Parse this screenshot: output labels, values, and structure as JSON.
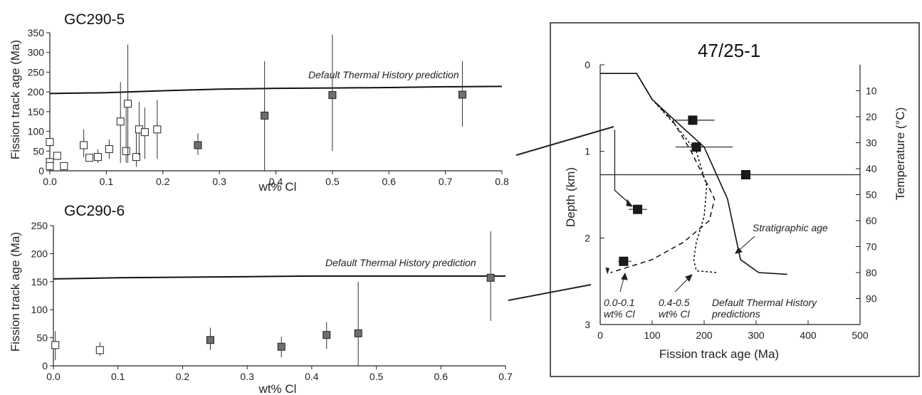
{
  "chart_data": [
    {
      "type": "scatter",
      "title": "GC290-5",
      "xlabel": "wt% Cl",
      "ylabel": "Fission track age (Ma)",
      "xlim": [
        0,
        0.8
      ],
      "ylim": [
        0,
        350
      ],
      "xticks": [
        "0.0",
        "0.1",
        "0.2",
        "0.3",
        "0.4",
        "0.5",
        "0.6",
        "0.7",
        "0.8"
      ],
      "yticks": [
        "0",
        "50",
        "100",
        "150",
        "200",
        "250",
        "300",
        "350"
      ],
      "line_label": "Default Thermal History prediction",
      "line": {
        "x": [
          0,
          0.1,
          0.2,
          0.3,
          0.4,
          0.5,
          0.6,
          0.7,
          0.8
        ],
        "y": [
          196,
          198,
          203,
          207,
          209,
          210,
          211,
          213,
          214
        ]
      },
      "series": [
        {
          "marker": "open",
          "points": [
            {
              "x": 0.0,
              "y": 73
            },
            {
              "x": 0.0,
              "y": 22
            },
            {
              "x": 0.0,
              "y": 12
            },
            {
              "x": 0.013,
              "y": 38
            },
            {
              "x": 0.025,
              "y": 12
            },
            {
              "x": 0.06,
              "y": 65,
              "lo": 35,
              "hi": 105
            },
            {
              "x": 0.07,
              "y": 33
            },
            {
              "x": 0.085,
              "y": 35,
              "lo": 20,
              "hi": 55
            },
            {
              "x": 0.105,
              "y": 55,
              "lo": 30,
              "hi": 80
            },
            {
              "x": 0.125,
              "y": 125,
              "lo": 20,
              "hi": 225
            },
            {
              "x": 0.135,
              "y": 50,
              "lo": 20,
              "hi": 160
            },
            {
              "x": 0.138,
              "y": 170,
              "lo": 20,
              "hi": 320
            },
            {
              "x": 0.153,
              "y": 35,
              "lo": 10,
              "hi": 95
            },
            {
              "x": 0.158,
              "y": 105,
              "lo": 40,
              "hi": 175
            },
            {
              "x": 0.168,
              "y": 98,
              "lo": 30,
              "hi": 160
            },
            {
              "x": 0.19,
              "y": 105,
              "lo": 30,
              "hi": 180
            }
          ]
        },
        {
          "marker": "filled",
          "points": [
            {
              "x": 0.262,
              "y": 65,
              "lo": 40,
              "hi": 95
            },
            {
              "x": 0.38,
              "y": 140,
              "lo": 0,
              "hi": 278
            },
            {
              "x": 0.5,
              "y": 192,
              "lo": 50,
              "hi": 345
            },
            {
              "x": 0.73,
              "y": 193,
              "lo": 112,
              "hi": 278
            }
          ]
        }
      ]
    },
    {
      "type": "scatter",
      "title": "GC290-6",
      "xlabel": "wt% Cl",
      "ylabel": "Fission track age (Ma)",
      "xlim": [
        0,
        0.7
      ],
      "ylim": [
        0,
        250
      ],
      "xticks": [
        "0.0",
        "0.1",
        "0.2",
        "0.3",
        "0.4",
        "0.5",
        "0.6",
        "0.7"
      ],
      "yticks": [
        "0",
        "50",
        "100",
        "150",
        "200",
        "250"
      ],
      "line_label": "Default Thermal History prediction",
      "line": {
        "x": [
          0,
          0.1,
          0.2,
          0.3,
          0.4,
          0.5,
          0.6,
          0.7
        ],
        "y": [
          155,
          157,
          158,
          159,
          160,
          160,
          160,
          160
        ]
      },
      "series": [
        {
          "marker": "open",
          "points": [
            {
              "x": 0.003,
              "y": 37,
              "lo": 10,
              "hi": 62
            },
            {
              "x": 0.072,
              "y": 28,
              "lo": 18,
              "hi": 42
            }
          ]
        },
        {
          "marker": "filled",
          "points": [
            {
              "x": 0.243,
              "y": 46,
              "lo": 28,
              "hi": 68
            },
            {
              "x": 0.353,
              "y": 34,
              "lo": 15,
              "hi": 52
            },
            {
              "x": 0.423,
              "y": 55,
              "lo": 30,
              "hi": 78
            },
            {
              "x": 0.472,
              "y": 58,
              "lo": 0,
              "hi": 150
            },
            {
              "x": 0.677,
              "y": 157,
              "lo": 80,
              "hi": 240
            }
          ]
        }
      ]
    },
    {
      "type": "scatter",
      "title": "47/25-1",
      "xlabel": "Fission track age (Ma)",
      "ylabel": "Depth (km)",
      "ylabel2": "Temperature (°C)",
      "xlim": [
        0,
        500
      ],
      "ylim": [
        0,
        3
      ],
      "ylim2": [
        0,
        100
      ],
      "xticks": [
        "0",
        "100",
        "200",
        "300",
        "400",
        "500"
      ],
      "yticks": [
        "0",
        "1",
        "2",
        "3"
      ],
      "yticks2": [
        "10",
        "20",
        "30",
        "40",
        "50",
        "60",
        "70",
        "80",
        "90"
      ],
      "curves": [
        {
          "style": "solid",
          "points": [
            [
              0,
              0.1
            ],
            [
              70,
              0.1
            ],
            [
              100,
              0.4
            ],
            [
              145,
              0.65
            ],
            [
              200,
              0.95
            ],
            [
              245,
              1.55
            ],
            [
              270,
              2.25
            ],
            [
              305,
              2.4
            ],
            [
              360,
              2.42
            ]
          ]
        },
        {
          "style": "dashed",
          "points": [
            [
              70,
              0.1
            ],
            [
              100,
              0.4
            ],
            [
              140,
              0.65
            ],
            [
              175,
              1.0
            ],
            [
              220,
              1.55
            ],
            [
              210,
              1.8
            ],
            [
              160,
              2.05
            ],
            [
              100,
              2.25
            ],
            [
              20,
              2.4
            ]
          ]
        },
        {
          "style": "dotted",
          "points": [
            [
              70,
              0.1
            ],
            [
              100,
              0.4
            ],
            [
              145,
              0.7
            ],
            [
              185,
              1.0
            ],
            [
              205,
              1.4
            ],
            [
              200,
              1.75
            ],
            [
              185,
              2.05
            ],
            [
              180,
              2.25
            ],
            [
              185,
              2.38
            ],
            [
              225,
              2.4
            ]
          ]
        }
      ],
      "points": [
        {
          "x": 72,
          "y": 1.67,
          "xlo": 55,
          "xhi": 90
        },
        {
          "x": 45,
          "y": 2.27,
          "xlo": 35,
          "xhi": 60
        },
        {
          "x": 178,
          "y": 0.64,
          "xlo": 140,
          "xhi": 220
        },
        {
          "x": 185,
          "y": 0.95,
          "xlo": 145,
          "xhi": 255
        },
        {
          "x": 280,
          "y": 1.27,
          "xlo": 0,
          "xhi": 500
        }
      ],
      "annotations": {
        "a1_line1": "0.0-0.1",
        "a1_line2": "wt% Cl",
        "a2_line1": "0.4-0.5",
        "a2_line2": "wt% Cl",
        "a3_line1": "Default Thermal History",
        "a3_line2": "predictions",
        "strat": "Stratigraphic age"
      }
    }
  ]
}
